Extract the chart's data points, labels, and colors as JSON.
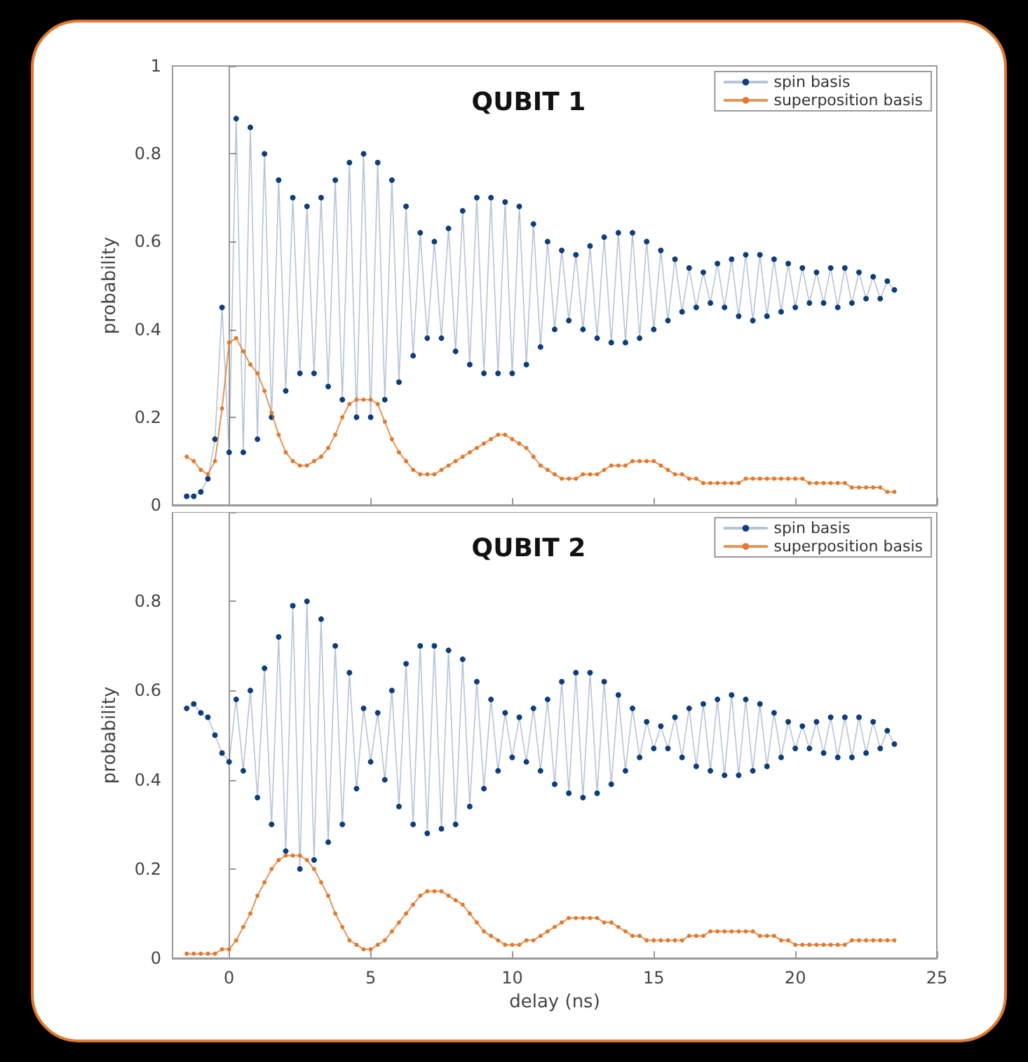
{
  "chart_data": [
    {
      "type": "line",
      "title": "QUBIT 1",
      "ylabel": "probability",
      "xlim": [
        -2,
        25
      ],
      "ylim": [
        0,
        1
      ],
      "xticks": [
        0,
        5,
        10,
        15,
        20,
        25
      ],
      "yticks": [
        0,
        0.2,
        0.4,
        0.6,
        0.8,
        1
      ],
      "tick_labels": "y",
      "legend": "top right",
      "marker": "circle",
      "line_style": "solid",
      "x": [
        -1.5,
        -1.25,
        -1,
        -0.75,
        -0.5,
        -0.25,
        0,
        0.25,
        0.5,
        0.75,
        1,
        1.25,
        1.5,
        1.75,
        2,
        2.25,
        2.5,
        2.75,
        3,
        3.25,
        3.5,
        3.75,
        4,
        4.25,
        4.5,
        4.75,
        5,
        5.25,
        5.5,
        5.75,
        6,
        6.25,
        6.5,
        6.75,
        7,
        7.25,
        7.5,
        7.75,
        8,
        8.25,
        8.5,
        8.75,
        9,
        9.25,
        9.5,
        9.75,
        10,
        10.25,
        10.5,
        10.75,
        11,
        11.25,
        11.5,
        11.75,
        12,
        12.25,
        12.5,
        12.75,
        13,
        13.25,
        13.5,
        13.75,
        14,
        14.25,
        14.5,
        14.75,
        15,
        15.25,
        15.5,
        15.75,
        16,
        16.25,
        16.5,
        16.75,
        17,
        17.25,
        17.5,
        17.75,
        18,
        18.25,
        18.5,
        18.75,
        19,
        19.25,
        19.5,
        19.75,
        20,
        20.25,
        20.5,
        20.75,
        21,
        21.25,
        21.5,
        21.75,
        22,
        22.25,
        22.5,
        22.75,
        23,
        23.25,
        23.5
      ],
      "series": [
        {
          "name": "spin basis",
          "color": "#0d3d7a",
          "values": [
            0.02,
            0.02,
            0.03,
            0.06,
            0.15,
            0.45,
            0.12,
            0.88,
            0.12,
            0.86,
            0.15,
            0.8,
            0.2,
            0.74,
            0.26,
            0.7,
            0.3,
            0.68,
            0.3,
            0.7,
            0.27,
            0.74,
            0.24,
            0.78,
            0.2,
            0.8,
            0.2,
            0.78,
            0.24,
            0.74,
            0.28,
            0.68,
            0.34,
            0.62,
            0.38,
            0.6,
            0.38,
            0.63,
            0.35,
            0.67,
            0.32,
            0.7,
            0.3,
            0.7,
            0.3,
            0.69,
            0.3,
            0.68,
            0.32,
            0.64,
            0.36,
            0.6,
            0.4,
            0.58,
            0.42,
            0.57,
            0.4,
            0.59,
            0.38,
            0.61,
            0.37,
            0.62,
            0.37,
            0.62,
            0.38,
            0.6,
            0.4,
            0.58,
            0.42,
            0.56,
            0.44,
            0.54,
            0.45,
            0.53,
            0.46,
            0.55,
            0.45,
            0.56,
            0.43,
            0.57,
            0.42,
            0.57,
            0.43,
            0.56,
            0.44,
            0.55,
            0.45,
            0.54,
            0.46,
            0.53,
            0.46,
            0.54,
            0.45,
            0.54,
            0.46,
            0.53,
            0.47,
            0.52,
            0.47,
            0.51,
            0.49
          ]
        },
        {
          "name": "superposition basis",
          "color": "#e07a2e",
          "values": [
            0.11,
            0.1,
            0.08,
            0.07,
            0.1,
            0.22,
            0.37,
            0.38,
            0.35,
            0.32,
            0.3,
            0.26,
            0.21,
            0.16,
            0.12,
            0.1,
            0.09,
            0.09,
            0.1,
            0.11,
            0.13,
            0.16,
            0.2,
            0.23,
            0.24,
            0.24,
            0.24,
            0.23,
            0.19,
            0.15,
            0.12,
            0.1,
            0.08,
            0.07,
            0.07,
            0.07,
            0.08,
            0.09,
            0.1,
            0.11,
            0.12,
            0.13,
            0.14,
            0.15,
            0.16,
            0.16,
            0.15,
            0.14,
            0.13,
            0.11,
            0.09,
            0.08,
            0.07,
            0.06,
            0.06,
            0.06,
            0.07,
            0.07,
            0.07,
            0.08,
            0.09,
            0.09,
            0.09,
            0.1,
            0.1,
            0.1,
            0.1,
            0.09,
            0.08,
            0.07,
            0.07,
            0.06,
            0.06,
            0.05,
            0.05,
            0.05,
            0.05,
            0.05,
            0.05,
            0.06,
            0.06,
            0.06,
            0.06,
            0.06,
            0.06,
            0.06,
            0.06,
            0.06,
            0.05,
            0.05,
            0.05,
            0.05,
            0.05,
            0.05,
            0.04,
            0.04,
            0.04,
            0.04,
            0.04,
            0.03,
            0.03
          ]
        }
      ]
    },
    {
      "type": "line",
      "title": "QUBIT 2",
      "xlabel": "delay (ns)",
      "ylabel": "probability",
      "xlim": [
        -2,
        25
      ],
      "ylim": [
        0,
        1
      ],
      "xticks": [
        0,
        5,
        10,
        15,
        20,
        25
      ],
      "yticks": [
        0,
        0.2,
        0.4,
        0.6,
        0.8,
        {
          "value": 1,
          "label": null
        }
      ],
      "legend": "top right",
      "marker": "circle",
      "line_style": "solid",
      "x": [
        -1.5,
        -1.25,
        -1,
        -0.75,
        -0.5,
        -0.25,
        0,
        0.25,
        0.5,
        0.75,
        1,
        1.25,
        1.5,
        1.75,
        2,
        2.25,
        2.5,
        2.75,
        3,
        3.25,
        3.5,
        3.75,
        4,
        4.25,
        4.5,
        4.75,
        5,
        5.25,
        5.5,
        5.75,
        6,
        6.25,
        6.5,
        6.75,
        7,
        7.25,
        7.5,
        7.75,
        8,
        8.25,
        8.5,
        8.75,
        9,
        9.25,
        9.5,
        9.75,
        10,
        10.25,
        10.5,
        10.75,
        11,
        11.25,
        11.5,
        11.75,
        12,
        12.25,
        12.5,
        12.75,
        13,
        13.25,
        13.5,
        13.75,
        14,
        14.25,
        14.5,
        14.75,
        15,
        15.25,
        15.5,
        15.75,
        16,
        16.25,
        16.5,
        16.75,
        17,
        17.25,
        17.5,
        17.75,
        18,
        18.25,
        18.5,
        18.75,
        19,
        19.25,
        19.5,
        19.75,
        20,
        20.25,
        20.5,
        20.75,
        21,
        21.25,
        21.5,
        21.75,
        22,
        22.25,
        22.5,
        22.75,
        23,
        23.25,
        23.5
      ],
      "series": [
        {
          "name": "spin basis",
          "color": "#0d3d7a",
          "values": [
            0.56,
            0.57,
            0.55,
            0.54,
            0.5,
            0.46,
            0.44,
            0.58,
            0.42,
            0.6,
            0.36,
            0.65,
            0.3,
            0.72,
            0.24,
            0.79,
            0.2,
            0.8,
            0.22,
            0.76,
            0.26,
            0.7,
            0.3,
            0.64,
            0.38,
            0.56,
            0.44,
            0.55,
            0.4,
            0.6,
            0.34,
            0.66,
            0.3,
            0.7,
            0.28,
            0.7,
            0.29,
            0.69,
            0.3,
            0.67,
            0.34,
            0.62,
            0.38,
            0.58,
            0.42,
            0.55,
            0.45,
            0.54,
            0.44,
            0.56,
            0.42,
            0.58,
            0.39,
            0.62,
            0.37,
            0.64,
            0.36,
            0.64,
            0.37,
            0.62,
            0.39,
            0.59,
            0.42,
            0.56,
            0.45,
            0.53,
            0.47,
            0.52,
            0.47,
            0.54,
            0.45,
            0.56,
            0.43,
            0.57,
            0.42,
            0.58,
            0.41,
            0.59,
            0.41,
            0.58,
            0.42,
            0.57,
            0.43,
            0.55,
            0.45,
            0.53,
            0.47,
            0.52,
            0.47,
            0.53,
            0.46,
            0.54,
            0.45,
            0.54,
            0.45,
            0.54,
            0.46,
            0.53,
            0.47,
            0.51,
            0.48
          ]
        },
        {
          "name": "superposition basis",
          "color": "#e07a2e",
          "values": [
            0.01,
            0.01,
            0.01,
            0.01,
            0.01,
            0.02,
            0.02,
            0.04,
            0.07,
            0.1,
            0.14,
            0.17,
            0.2,
            0.22,
            0.23,
            0.23,
            0.23,
            0.22,
            0.2,
            0.17,
            0.14,
            0.1,
            0.07,
            0.04,
            0.03,
            0.02,
            0.02,
            0.03,
            0.04,
            0.06,
            0.08,
            0.1,
            0.12,
            0.14,
            0.15,
            0.15,
            0.15,
            0.14,
            0.13,
            0.12,
            0.1,
            0.08,
            0.06,
            0.05,
            0.04,
            0.03,
            0.03,
            0.03,
            0.04,
            0.04,
            0.05,
            0.06,
            0.07,
            0.08,
            0.09,
            0.09,
            0.09,
            0.09,
            0.09,
            0.08,
            0.08,
            0.07,
            0.06,
            0.05,
            0.05,
            0.04,
            0.04,
            0.04,
            0.04,
            0.04,
            0.04,
            0.05,
            0.05,
            0.05,
            0.06,
            0.06,
            0.06,
            0.06,
            0.06,
            0.06,
            0.06,
            0.05,
            0.05,
            0.05,
            0.04,
            0.04,
            0.03,
            0.03,
            0.03,
            0.03,
            0.03,
            0.03,
            0.03,
            0.03,
            0.04,
            0.04,
            0.04,
            0.04,
            0.04,
            0.04,
            0.04
          ]
        }
      ]
    }
  ]
}
